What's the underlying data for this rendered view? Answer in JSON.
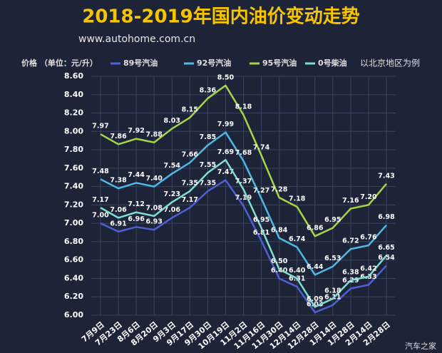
{
  "chart_data": {
    "type": "line",
    "title": "2018-2019年国内油价变动走势",
    "subtitle": "www.autohome.com.cn",
    "y_label": "价格 （单位：元/升）",
    "annotation": "以北京地区为例",
    "watermark": "汽车之家",
    "categories": [
      "7月9日",
      "7月23日",
      "8月6日",
      "8月20日",
      "9月3日",
      "9月17日",
      "9月30日",
      "10月19日",
      "11月2日",
      "11月16日",
      "11月30日",
      "12月14日",
      "12月28日",
      "1月14日",
      "1月28日",
      "2月14日",
      "2月28日"
    ],
    "series": [
      {
        "name": "89号汽油",
        "color": "#4f5fd6",
        "values": [
          7.0,
          6.91,
          6.96,
          6.93,
          7.06,
          7.17,
          7.35,
          7.47,
          7.19,
          6.81,
          6.4,
          6.31,
          6.03,
          6.11,
          6.29,
          6.33,
          6.54
        ],
        "value_labels": [
          "7.00",
          "6.91",
          "6.96",
          "6.93",
          "7.06",
          "7.17",
          "7.35",
          "7.47",
          "7.19",
          "6.81",
          "6.40",
          "6.31",
          "6.03",
          "6.11",
          "6.29",
          "6.33",
          "6.54"
        ]
      },
      {
        "name": "92号汽油",
        "color": "#4fb8e6",
        "values": [
          7.48,
          7.38,
          7.44,
          7.4,
          7.54,
          7.66,
          7.85,
          7.99,
          7.68,
          7.27,
          6.84,
          6.74,
          6.44,
          6.53,
          6.72,
          6.76,
          6.98
        ],
        "value_labels": [
          "7.48",
          "7.38",
          "7.44",
          "7.40",
          "7.54",
          "7.66",
          "7.85",
          "7.99",
          "7.68",
          "7.27",
          "6.84",
          "6.74",
          "6.44",
          "6.53",
          "6.72",
          "6.76",
          "6.98"
        ]
      },
      {
        "name": "95号汽油",
        "color": "#a6d646",
        "values": [
          7.97,
          7.86,
          7.92,
          7.88,
          8.03,
          8.15,
          8.36,
          8.5,
          8.18,
          7.74,
          7.28,
          7.18,
          6.86,
          6.95,
          7.16,
          7.2,
          7.43
        ],
        "value_labels": [
          "7.97",
          "7.86",
          "7.92",
          "7.88",
          "8.03",
          "8.15",
          "8.36",
          "8.50",
          "8.18",
          "7.74",
          "7.28",
          "7.18",
          "6.86",
          "6.95",
          "7.16",
          "7.20",
          "7.43"
        ]
      },
      {
        "name": "0号柴油",
        "color": "#7fded2",
        "values": [
          7.17,
          7.06,
          7.12,
          7.08,
          7.23,
          7.35,
          7.55,
          7.69,
          7.37,
          6.95,
          6.5,
          6.4,
          6.09,
          6.18,
          6.38,
          6.42,
          6.65
        ],
        "value_labels": [
          "7.17",
          "7.06",
          "7.12",
          "7.08",
          "7.23",
          "7.35",
          "7.55",
          "7.69",
          "7.37",
          "6.95",
          "6.50",
          "6.40",
          "6.09",
          "6.18",
          "6.38",
          "6.42",
          "6.65"
        ]
      }
    ],
    "ylim": [
      6.0,
      8.6
    ],
    "yticks": [
      {
        "value": 6.0,
        "label": "6.00"
      },
      {
        "value": 6.2,
        "label": "6.20"
      },
      {
        "value": 6.4,
        "label": "6.40"
      },
      {
        "value": 6.6,
        "label": "6.60"
      },
      {
        "value": 6.8,
        "label": "6.80"
      },
      {
        "value": 7.0,
        "label": "7.00"
      },
      {
        "value": 7.2,
        "label": "7.20"
      },
      {
        "value": 7.4,
        "label": "7.40"
      },
      {
        "value": 7.6,
        "label": "7.60"
      },
      {
        "value": 7.8,
        "label": "7.80"
      },
      {
        "value": 8.0,
        "label": "8.00"
      },
      {
        "value": 8.2,
        "label": "8.20"
      },
      {
        "value": 8.4,
        "label": "8.40"
      },
      {
        "value": 8.6,
        "label": "8.60"
      }
    ],
    "grid": true
  }
}
